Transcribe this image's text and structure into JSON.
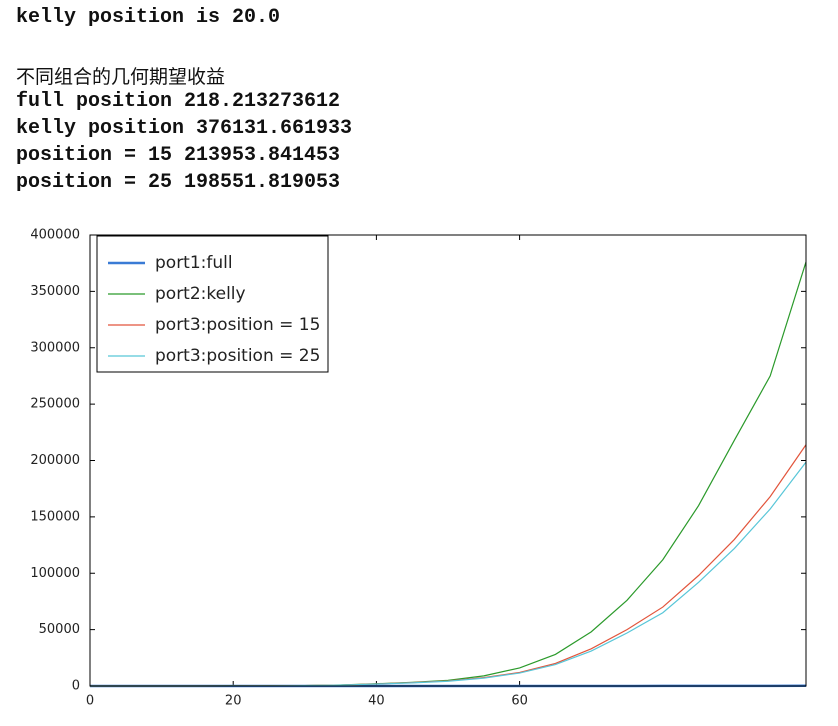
{
  "output": {
    "lines": [
      "kelly position is 20.0",
      "不同组合的几何期望收益",
      "full position 218.213273612",
      "kelly position 376131.661933",
      "position = 15 213953.841453",
      "position = 25 198551.819053"
    ]
  },
  "chart_data": {
    "type": "line",
    "x": [
      0,
      5,
      10,
      15,
      20,
      25,
      30,
      35,
      40,
      45,
      50,
      55,
      60,
      65,
      70,
      75,
      80,
      85,
      90,
      95,
      100
    ],
    "series": [
      {
        "name": "port1:full",
        "color": "#3a7bd5",
        "width": 2.5,
        "values": [
          1,
          1,
          2,
          2,
          3,
          4,
          5,
          6,
          8,
          10,
          12,
          15,
          20,
          30,
          40,
          50,
          70,
          100,
          130,
          160,
          218
        ]
      },
      {
        "name": "port2:kelly",
        "color": "#2b9a2b",
        "width": 1.2,
        "values": [
          1,
          3,
          10,
          30,
          80,
          200,
          400,
          900,
          2000,
          3200,
          5000,
          9000,
          16000,
          28000,
          48000,
          76000,
          112000,
          160000,
          218000,
          275000,
          376131
        ]
      },
      {
        "name": "port3:position = 15",
        "color": "#e2553c",
        "width": 1.2,
        "values": [
          1,
          3,
          8,
          25,
          70,
          170,
          350,
          800,
          1800,
          3000,
          4500,
          7500,
          12000,
          20000,
          33000,
          50000,
          70000,
          98000,
          130000,
          168000,
          213954
        ]
      },
      {
        "name": "port3:position = 25",
        "color": "#58c6d8",
        "width": 1.2,
        "values": [
          1,
          3,
          8,
          24,
          66,
          160,
          330,
          760,
          1700,
          2800,
          4200,
          7000,
          11500,
          19000,
          31000,
          47000,
          65000,
          92000,
          122000,
          157000,
          198552
        ]
      }
    ],
    "xlim": [
      0,
      100
    ],
    "xticks": [
      0,
      20,
      40,
      60
    ],
    "ylim": [
      0,
      400000
    ],
    "yticks": [
      0,
      50000,
      100000,
      150000,
      200000,
      250000,
      300000,
      350000,
      400000
    ],
    "legend": "upper left"
  }
}
